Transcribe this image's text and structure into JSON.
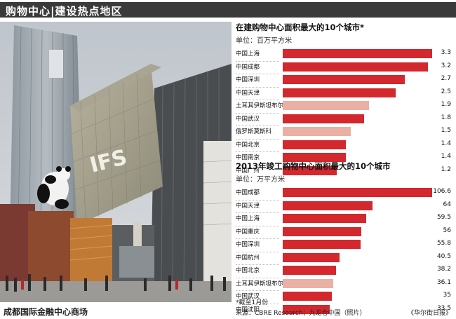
{
  "header": {
    "title": "购物中心|建设热点地区"
  },
  "photo": {
    "sign_text": "IFS",
    "caption": "成都国际金融中心商场"
  },
  "chart_data": [
    {
      "type": "bar",
      "title": "在建购物中心面积最大的10个城市*",
      "unit": "单位：百万平方米",
      "categories": [
        "中国上海",
        "中国成都",
        "中国深圳",
        "中国天津",
        "土耳其伊斯坦布尔",
        "中国武汉",
        "俄罗斯莫斯科",
        "中国北京",
        "中国南京",
        "中国广州"
      ],
      "values": [
        3.3,
        3.2,
        2.7,
        2.5,
        1.9,
        1.8,
        1.5,
        1.4,
        1.4,
        1.2
      ],
      "value_labels": [
        "3.3",
        "3.2",
        "2.7",
        "2.5",
        "1.9",
        "1.8",
        "1.5",
        "1.4",
        "1.4",
        "1.2"
      ],
      "highlight": [
        false,
        false,
        false,
        false,
        true,
        false,
        true,
        false,
        false,
        false
      ],
      "max": 3.3,
      "colors": {
        "china": "#d2282e",
        "other": "#eab0a6"
      }
    },
    {
      "type": "bar",
      "title": "2013年竣工购物中心面积最大的10个城市",
      "unit": "单位：万平方米",
      "categories": [
        "中国成都",
        "中国天津",
        "中国上海",
        "中国重庆",
        "中国深圳",
        "中国杭州",
        "中国北京",
        "土耳其伊斯坦布尔",
        "中国武汉",
        "中国沈阳"
      ],
      "values": [
        106.6,
        64,
        59.5,
        56,
        55.8,
        40.5,
        38.2,
        36.1,
        35,
        33.5
      ],
      "value_labels": [
        "106.6",
        "64",
        "59.5",
        "56",
        "55.8",
        "40.5",
        "38.2",
        "36.1",
        "35",
        "33.5"
      ],
      "highlight": [
        false,
        false,
        false,
        false,
        false,
        false,
        false,
        true,
        false,
        false
      ],
      "max": 106.6,
      "colors": {
        "china": "#d2282e",
        "other": "#eab0a6"
      }
    }
  ],
  "footnote": "*截至1月份",
  "source": "来源：CBRE Research；九龙仓中国（照片）",
  "credit": "《华尔街日报》"
}
